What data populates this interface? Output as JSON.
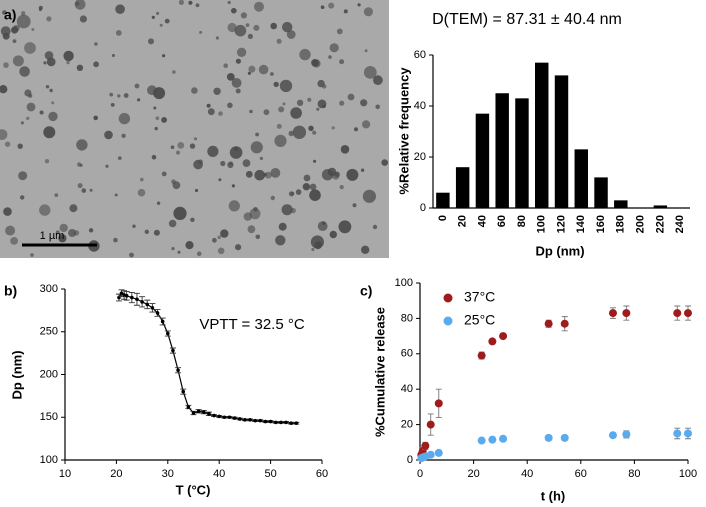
{
  "panel_labels": [
    "a)",
    "b)",
    "c)"
  ],
  "image": {
    "scale_bar": "1 µm"
  },
  "chart_data": [
    {
      "type": "bar",
      "title": "D(TEM) = 87.31 ± 40.4 nm",
      "x_label": "Dp (nm)",
      "y_label": "%Relative frequency",
      "categories": [
        "0",
        "20",
        "40",
        "60",
        "80",
        "100",
        "120",
        "140",
        "160",
        "180",
        "200",
        "220",
        "240"
      ],
      "values": [
        6,
        16,
        37,
        45,
        43,
        57,
        52,
        23,
        12,
        3,
        0,
        1,
        0
      ],
      "color": "#000000",
      "ylim": [
        0,
        60
      ],
      "yticks": [
        0,
        20,
        40,
        60
      ]
    },
    {
      "type": "line",
      "x_label": "T (°C)",
      "y_label": "Dp (nm)",
      "annotation": "VPTT = 32.5 °C",
      "color": "#000000",
      "x": [
        20.5,
        21,
        21.5,
        22,
        23,
        24,
        25,
        26,
        27,
        28,
        29,
        30,
        31,
        32,
        33,
        34,
        35,
        36,
        37,
        38,
        39,
        40,
        41,
        42,
        43,
        44,
        45,
        46,
        47,
        48,
        49,
        50,
        51,
        52,
        53,
        54,
        55
      ],
      "values": [
        290,
        295,
        293,
        292,
        290,
        288,
        285,
        282,
        278,
        272,
        262,
        248,
        228,
        205,
        180,
        162,
        155,
        157,
        156,
        154,
        152,
        151,
        150,
        150,
        149,
        148,
        147,
        147,
        146,
        146,
        145,
        145,
        144,
        144,
        144,
        143,
        143
      ],
      "errors": [
        4,
        4,
        5,
        5,
        6,
        7,
        6,
        5,
        5,
        4,
        4,
        3,
        3,
        3,
        3,
        2,
        2,
        2,
        2,
        2,
        1,
        1,
        1,
        1,
        1,
        1,
        1,
        1,
        1,
        1,
        1,
        1,
        1,
        1,
        1,
        1,
        1
      ],
      "xlim": [
        10,
        60
      ],
      "xticks": [
        10,
        20,
        30,
        40,
        50,
        60
      ],
      "ylim": [
        100,
        300
      ],
      "yticks": [
        100,
        150,
        200,
        250,
        300
      ]
    },
    {
      "type": "scatter",
      "x_label": "t (h)",
      "y_label": "%Cumulative release",
      "legend": "upper left",
      "series": [
        {
          "name": "37°C",
          "color": "#a01c1c",
          "x": [
            0.5,
            1,
            2,
            4,
            7,
            23,
            27,
            31,
            48,
            54,
            72,
            77,
            96,
            100
          ],
          "values": [
            3,
            5,
            8,
            20,
            32,
            59,
            67,
            70,
            77,
            77,
            83,
            83,
            83,
            83
          ],
          "errors": [
            1,
            2,
            2,
            6,
            8,
            2,
            1,
            1,
            2,
            4,
            3,
            4,
            4,
            4
          ]
        },
        {
          "name": "25°C",
          "color": "#5aaaee",
          "x": [
            0.5,
            1,
            2,
            4,
            7,
            23,
            27,
            31,
            48,
            54,
            72,
            77,
            96,
            100
          ],
          "values": [
            1,
            1.5,
            2,
            3,
            4,
            11,
            11.5,
            12,
            12.5,
            12.5,
            14,
            14.5,
            15,
            15
          ],
          "errors": [
            0.5,
            0.5,
            0.5,
            1,
            1,
            1,
            1,
            1,
            1,
            1,
            1,
            2,
            3,
            3
          ]
        }
      ],
      "xlim": [
        0,
        100
      ],
      "xticks": [
        0,
        20,
        40,
        60,
        80,
        100
      ],
      "ylim": [
        0,
        100
      ],
      "yticks": [
        0,
        20,
        40,
        60,
        80,
        100
      ]
    }
  ]
}
